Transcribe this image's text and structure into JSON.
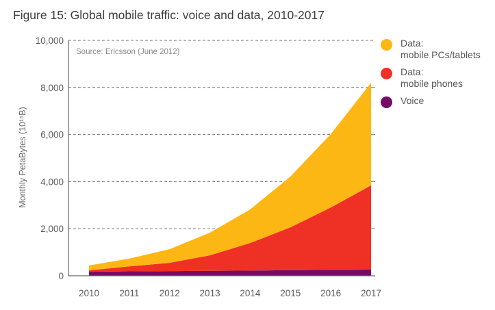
{
  "chart_data": {
    "type": "area",
    "stacked": true,
    "title": "Figure 15: Global mobile traffic: voice and data, 2010-2017",
    "annotation": "Source: Ericsson (June 2012)",
    "xlabel": "",
    "ylabel": "Monthly PetaBytes (10¹⁵B)",
    "x": [
      2010,
      2011,
      2012,
      2013,
      2014,
      2015,
      2016,
      2017
    ],
    "x_tick_labels": [
      "2010",
      "2011",
      "2012",
      "2013",
      "2014",
      "2015",
      "2016",
      "2017"
    ],
    "ylim": [
      0,
      10000
    ],
    "y_ticks": [
      0,
      2000,
      4000,
      6000,
      8000,
      10000
    ],
    "y_tick_labels": [
      "0",
      "2,000",
      "4,000",
      "6,000",
      "8,000",
      "10,000"
    ],
    "grid": "horizontal-dashed",
    "legend_position": "right",
    "series": [
      {
        "name": "Voice",
        "legend_label": "Voice",
        "color": "#760b67",
        "values": [
          170,
          190,
          200,
          210,
          220,
          240,
          250,
          260
        ]
      },
      {
        "name": "Data: mobile phones",
        "legend_label": "Data:\nmobile phones",
        "color": "#ee3124",
        "values": [
          60,
          210,
          350,
          660,
          1170,
          1820,
          2650,
          3580
        ]
      },
      {
        "name": "Data: mobile PCs/tablets",
        "legend_label": "Data:\nmobile PCs/tablets",
        "color": "#fdb714",
        "values": [
          210,
          330,
          580,
          960,
          1430,
          2160,
          3120,
          4360
        ]
      }
    ]
  },
  "legend_order": [
    2,
    1,
    0
  ]
}
